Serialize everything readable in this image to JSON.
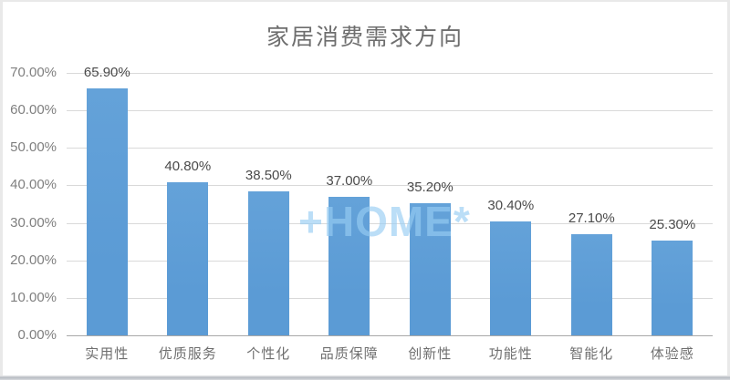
{
  "watermark": {
    "text": "+HOME*",
    "color": "rgba(150, 205, 242, 0.65)"
  },
  "chart_data": {
    "type": "bar",
    "title": "家居消费需求方向",
    "categories": [
      "实用性",
      "优质服务",
      "个性化",
      "品质保障",
      "创新性",
      "功能性",
      "智能化",
      "体验感"
    ],
    "values": [
      65.9,
      40.8,
      38.5,
      37.0,
      35.2,
      30.4,
      27.1,
      25.3
    ],
    "data_labels": [
      "65.90%",
      "40.80%",
      "38.50%",
      "37.00%",
      "35.20%",
      "30.40%",
      "27.10%",
      "25.30%"
    ],
    "y_ticks": [
      {
        "value": 0,
        "label": "0.00%"
      },
      {
        "value": 10,
        "label": "10.00%"
      },
      {
        "value": 20,
        "label": "20.00%"
      },
      {
        "value": 30,
        "label": "30.00%"
      },
      {
        "value": 40,
        "label": "40.00%"
      },
      {
        "value": 50,
        "label": "50.00%"
      },
      {
        "value": 60,
        "label": "60.00%"
      },
      {
        "value": 70,
        "label": "70.00%"
      }
    ],
    "ylim": [
      0,
      70
    ],
    "xlabel": "",
    "ylabel": "",
    "grid": true,
    "legend": "none",
    "bar_color": "#5b9bd5",
    "bar_color_light": "#64a2d9",
    "gridline_color": "#d9d9d9",
    "axis_line_color": "#a8a8a8"
  }
}
